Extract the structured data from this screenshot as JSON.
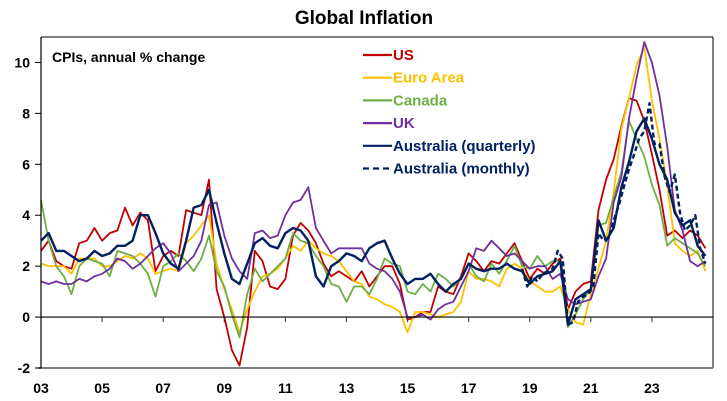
{
  "chart_data": {
    "type": "line",
    "title": "Global Inflation",
    "subtitle": "CPIs, annual % change",
    "xlabel": "",
    "ylabel": "",
    "xlim": [
      2003,
      2025
    ],
    "ylim": [
      -2,
      11
    ],
    "yticks": [
      -2,
      0,
      2,
      4,
      6,
      8,
      10
    ],
    "ytick_labels": [
      "-2",
      "0",
      "2",
      "4",
      "6",
      "8",
      "10"
    ],
    "xticks": [
      2003,
      2005,
      2007,
      2009,
      2011,
      2013,
      2015,
      2017,
      2019,
      2021,
      2023
    ],
    "xtick_labels": [
      "03",
      "05",
      "07",
      "09",
      "11",
      "13",
      "15",
      "17",
      "19",
      "21",
      "23"
    ],
    "grid": false,
    "legend_position": "top-center",
    "series": [
      {
        "name": "US",
        "color": "#C00000",
        "dash": false,
        "x": [
          2003.0,
          2003.25,
          2003.5,
          2003.75,
          2004.0,
          2004.25,
          2004.5,
          2004.75,
          2005.0,
          2005.25,
          2005.5,
          2005.75,
          2006.0,
          2006.25,
          2006.5,
          2006.75,
          2007.0,
          2007.25,
          2007.5,
          2007.75,
          2008.0,
          2008.25,
          2008.5,
          2008.75,
          2009.0,
          2009.25,
          2009.5,
          2009.75,
          2010.0,
          2010.25,
          2010.5,
          2010.75,
          2011.0,
          2011.25,
          2011.5,
          2011.75,
          2012.0,
          2012.25,
          2012.5,
          2012.75,
          2013.0,
          2013.25,
          2013.5,
          2013.75,
          2014.0,
          2014.25,
          2014.5,
          2014.75,
          2015.0,
          2015.25,
          2015.5,
          2015.75,
          2016.0,
          2016.25,
          2016.5,
          2016.75,
          2017.0,
          2017.25,
          2017.5,
          2017.75,
          2018.0,
          2018.25,
          2018.5,
          2018.75,
          2019.0,
          2019.25,
          2019.5,
          2019.75,
          2020.0,
          2020.25,
          2020.5,
          2020.75,
          2021.0,
          2021.25,
          2021.5,
          2021.75,
          2022.0,
          2022.25,
          2022.5,
          2022.75,
          2023.0,
          2023.25,
          2023.5,
          2023.75,
          2024.0,
          2024.25,
          2024.5,
          2024.75
        ],
        "values": [
          2.6,
          3.0,
          2.2,
          2.0,
          1.9,
          2.9,
          3.0,
          3.5,
          3.0,
          3.3,
          3.4,
          4.3,
          3.6,
          4.1,
          3.8,
          1.8,
          2.4,
          2.6,
          2.4,
          4.2,
          4.1,
          4.0,
          5.4,
          1.1,
          0.0,
          -1.3,
          -1.9,
          -0.4,
          2.6,
          2.2,
          1.2,
          1.1,
          1.5,
          3.2,
          3.7,
          3.4,
          2.9,
          2.1,
          1.6,
          1.8,
          1.6,
          1.4,
          1.8,
          1.2,
          1.6,
          2.0,
          2.0,
          1.3,
          -0.1,
          0.0,
          0.2,
          0.2,
          1.2,
          1.0,
          0.9,
          1.6,
          2.5,
          2.2,
          1.8,
          2.2,
          2.1,
          2.5,
          2.9,
          2.2,
          1.5,
          1.9,
          1.7,
          2.1,
          2.3,
          0.3,
          1.0,
          1.3,
          1.4,
          4.2,
          5.4,
          6.2,
          7.5,
          8.6,
          8.5,
          7.7,
          6.4,
          5.0,
          3.2,
          3.4,
          3.1,
          3.4,
          3.2,
          2.7
        ]
      },
      {
        "name": "Euro Area",
        "color": "#FFC000",
        "dash": false,
        "x": [
          2003.0,
          2003.25,
          2003.5,
          2003.75,
          2004.0,
          2004.25,
          2004.5,
          2004.75,
          2005.0,
          2005.25,
          2005.5,
          2005.75,
          2006.0,
          2006.25,
          2006.5,
          2006.75,
          2007.0,
          2007.25,
          2007.5,
          2007.75,
          2008.0,
          2008.25,
          2008.5,
          2008.75,
          2009.0,
          2009.25,
          2009.5,
          2009.75,
          2010.0,
          2010.25,
          2010.5,
          2010.75,
          2011.0,
          2011.25,
          2011.5,
          2011.75,
          2012.0,
          2012.25,
          2012.5,
          2012.75,
          2013.0,
          2013.25,
          2013.5,
          2013.75,
          2014.0,
          2014.25,
          2014.5,
          2014.75,
          2015.0,
          2015.25,
          2015.5,
          2015.75,
          2016.0,
          2016.25,
          2016.5,
          2016.75,
          2017.0,
          2017.25,
          2017.5,
          2017.75,
          2018.0,
          2018.25,
          2018.5,
          2018.75,
          2019.0,
          2019.25,
          2019.5,
          2019.75,
          2020.0,
          2020.25,
          2020.5,
          2020.75,
          2021.0,
          2021.25,
          2021.5,
          2021.75,
          2022.0,
          2022.25,
          2022.5,
          2022.75,
          2023.0,
          2023.25,
          2023.5,
          2023.75,
          2024.0,
          2024.25,
          2024.5,
          2024.75
        ],
        "values": [
          2.1,
          2.0,
          2.0,
          2.0,
          1.7,
          2.3,
          2.3,
          2.3,
          2.0,
          2.0,
          2.2,
          2.4,
          2.3,
          2.5,
          2.3,
          1.7,
          1.8,
          1.9,
          1.8,
          2.9,
          3.2,
          3.6,
          4.0,
          2.1,
          1.1,
          0.3,
          -0.6,
          0.3,
          1.0,
          1.6,
          1.7,
          1.9,
          2.3,
          2.8,
          2.6,
          3.0,
          2.7,
          2.5,
          2.4,
          2.2,
          1.8,
          1.4,
          1.3,
          0.8,
          0.7,
          0.5,
          0.4,
          0.2,
          -0.6,
          0.2,
          0.2,
          0.1,
          0.0,
          0.1,
          0.2,
          0.6,
          1.8,
          1.5,
          1.5,
          1.4,
          1.2,
          1.9,
          2.1,
          1.9,
          1.4,
          1.2,
          1.0,
          1.0,
          1.2,
          0.3,
          -0.2,
          -0.3,
          0.9,
          1.9,
          3.0,
          4.9,
          7.4,
          8.6,
          9.9,
          10.6,
          8.5,
          7.0,
          5.2,
          2.9,
          2.6,
          2.4,
          2.6,
          1.8
        ]
      },
      {
        "name": "Canada",
        "color": "#70AD47",
        "dash": false,
        "x": [
          2003.0,
          2003.25,
          2003.5,
          2003.75,
          2004.0,
          2004.25,
          2004.5,
          2004.75,
          2005.0,
          2005.25,
          2005.5,
          2005.75,
          2006.0,
          2006.25,
          2006.5,
          2006.75,
          2007.0,
          2007.25,
          2007.5,
          2007.75,
          2008.0,
          2008.25,
          2008.5,
          2008.75,
          2009.0,
          2009.25,
          2009.5,
          2009.75,
          2010.0,
          2010.25,
          2010.5,
          2010.75,
          2011.0,
          2011.25,
          2011.5,
          2011.75,
          2012.0,
          2012.25,
          2012.5,
          2012.75,
          2013.0,
          2013.25,
          2013.5,
          2013.75,
          2014.0,
          2014.25,
          2014.5,
          2014.75,
          2015.0,
          2015.25,
          2015.5,
          2015.75,
          2016.0,
          2016.25,
          2016.5,
          2016.75,
          2017.0,
          2017.25,
          2017.5,
          2017.75,
          2018.0,
          2018.25,
          2018.5,
          2018.75,
          2019.0,
          2019.25,
          2019.5,
          2019.75,
          2020.0,
          2020.25,
          2020.5,
          2020.75,
          2021.0,
          2021.25,
          2021.5,
          2021.75,
          2022.0,
          2022.25,
          2022.5,
          2022.75,
          2023.0,
          2023.25,
          2023.5,
          2023.75,
          2024.0,
          2024.25,
          2024.5,
          2024.75
        ],
        "values": [
          4.6,
          3.0,
          2.0,
          1.6,
          0.9,
          2.0,
          2.3,
          2.2,
          2.1,
          1.6,
          2.6,
          2.5,
          2.4,
          2.1,
          1.7,
          0.8,
          2.0,
          2.2,
          2.5,
          2.2,
          1.8,
          2.3,
          3.2,
          1.8,
          1.2,
          0.1,
          -0.8,
          0.9,
          1.9,
          1.4,
          1.7,
          2.0,
          2.3,
          3.3,
          3.0,
          2.9,
          2.4,
          2.0,
          1.3,
          1.2,
          0.6,
          1.2,
          1.2,
          0.9,
          1.5,
          2.3,
          2.1,
          2.0,
          1.0,
          0.9,
          1.3,
          1.0,
          1.7,
          1.5,
          1.2,
          1.5,
          2.1,
          1.6,
          1.4,
          2.1,
          1.7,
          2.2,
          2.8,
          2.0,
          1.9,
          2.4,
          2.0,
          2.2,
          2.2,
          -0.4,
          0.1,
          0.7,
          1.1,
          3.6,
          3.7,
          4.7,
          5.7,
          7.7,
          7.0,
          6.3,
          5.2,
          4.4,
          2.8,
          3.1,
          2.9,
          2.7,
          2.5,
          2.0
        ]
      },
      {
        "name": "UK",
        "color": "#7030A0",
        "dash": false,
        "x": [
          2003.0,
          2003.25,
          2003.5,
          2003.75,
          2004.0,
          2004.25,
          2004.5,
          2004.75,
          2005.0,
          2005.25,
          2005.5,
          2005.75,
          2006.0,
          2006.25,
          2006.5,
          2006.75,
          2007.0,
          2007.25,
          2007.5,
          2007.75,
          2008.0,
          2008.25,
          2008.5,
          2008.75,
          2009.0,
          2009.25,
          2009.5,
          2009.75,
          2010.0,
          2010.25,
          2010.5,
          2010.75,
          2011.0,
          2011.25,
          2011.5,
          2011.75,
          2012.0,
          2012.25,
          2012.5,
          2012.75,
          2013.0,
          2013.25,
          2013.5,
          2013.75,
          2014.0,
          2014.25,
          2014.5,
          2014.75,
          2015.0,
          2015.25,
          2015.5,
          2015.75,
          2016.0,
          2016.25,
          2016.5,
          2016.75,
          2017.0,
          2017.25,
          2017.5,
          2017.75,
          2018.0,
          2018.25,
          2018.5,
          2018.75,
          2019.0,
          2019.25,
          2019.5,
          2019.75,
          2020.0,
          2020.25,
          2020.5,
          2020.75,
          2021.0,
          2021.25,
          2021.5,
          2021.75,
          2022.0,
          2022.25,
          2022.5,
          2022.75,
          2023.0,
          2023.25,
          2023.5,
          2023.75,
          2024.0,
          2024.25,
          2024.5,
          2024.75
        ],
        "values": [
          1.4,
          1.3,
          1.4,
          1.3,
          1.3,
          1.5,
          1.4,
          1.6,
          1.7,
          1.9,
          2.3,
          2.2,
          1.9,
          2.1,
          2.4,
          2.7,
          2.9,
          2.5,
          1.8,
          2.1,
          2.4,
          3.0,
          4.4,
          4.5,
          3.2,
          2.3,
          1.8,
          1.5,
          3.3,
          3.4,
          3.1,
          3.2,
          4.0,
          4.5,
          4.6,
          5.1,
          3.5,
          3.0,
          2.5,
          2.7,
          2.7,
          2.7,
          2.7,
          2.1,
          1.9,
          1.8,
          1.5,
          1.0,
          0.0,
          0.0,
          0.1,
          -0.1,
          0.3,
          0.5,
          0.6,
          1.2,
          1.8,
          2.7,
          2.6,
          3.0,
          2.7,
          2.4,
          2.5,
          2.2,
          1.9,
          2.0,
          2.0,
          1.5,
          1.7,
          0.7,
          0.5,
          0.6,
          0.7,
          1.6,
          2.3,
          4.5,
          5.5,
          7.8,
          9.4,
          10.8,
          10.0,
          8.7,
          6.7,
          4.2,
          3.4,
          2.2,
          2.0,
          2.2
        ]
      },
      {
        "name": "Australia (quarterly)",
        "color": "#002060",
        "dash": false,
        "x": [
          2003.0,
          2003.25,
          2003.5,
          2003.75,
          2004.0,
          2004.25,
          2004.5,
          2004.75,
          2005.0,
          2005.25,
          2005.5,
          2005.75,
          2006.0,
          2006.25,
          2006.5,
          2006.75,
          2007.0,
          2007.25,
          2007.5,
          2007.75,
          2008.0,
          2008.25,
          2008.5,
          2008.75,
          2009.0,
          2009.25,
          2009.5,
          2009.75,
          2010.0,
          2010.25,
          2010.5,
          2010.75,
          2011.0,
          2011.25,
          2011.5,
          2011.75,
          2012.0,
          2012.25,
          2012.5,
          2012.75,
          2013.0,
          2013.25,
          2013.5,
          2013.75,
          2014.0,
          2014.25,
          2014.5,
          2014.75,
          2015.0,
          2015.25,
          2015.5,
          2015.75,
          2016.0,
          2016.25,
          2016.5,
          2016.75,
          2017.0,
          2017.25,
          2017.5,
          2017.75,
          2018.0,
          2018.25,
          2018.5,
          2018.75,
          2019.0,
          2019.25,
          2019.5,
          2019.75,
          2020.0,
          2020.25,
          2020.5,
          2020.75,
          2021.0,
          2021.25,
          2021.5,
          2021.75,
          2022.0,
          2022.25,
          2022.5,
          2022.75,
          2023.0,
          2023.25,
          2023.5,
          2023.75,
          2024.0,
          2024.25,
          2024.5,
          2024.75
        ],
        "values": [
          3.0,
          3.3,
          2.6,
          2.6,
          2.4,
          2.2,
          2.3,
          2.6,
          2.4,
          2.5,
          2.8,
          2.8,
          3.0,
          4.0,
          4.0,
          3.3,
          2.5,
          2.1,
          1.9,
          3.0,
          4.3,
          4.4,
          5.0,
          3.7,
          2.5,
          1.5,
          1.3,
          2.1,
          2.9,
          3.1,
          2.8,
          2.7,
          3.3,
          3.5,
          3.4,
          3.0,
          1.6,
          1.2,
          2.0,
          2.2,
          2.5,
          2.4,
          2.2,
          2.7,
          2.9,
          3.0,
          2.3,
          1.7,
          1.3,
          1.5,
          1.5,
          1.7,
          1.3,
          1.0,
          1.3,
          1.5,
          2.1,
          1.9,
          1.8,
          1.9,
          1.9,
          2.1,
          1.9,
          1.8,
          1.3,
          1.6,
          1.7,
          1.8,
          2.2,
          -0.3,
          0.7,
          0.9,
          1.1,
          3.8,
          3.0,
          3.5,
          5.1,
          6.1,
          7.3,
          7.8,
          7.0,
          6.0,
          5.4,
          4.1,
          3.6,
          3.8,
          2.8,
          2.4
        ]
      },
      {
        "name": "Australia (monthly)",
        "color": "#002060",
        "dash": true,
        "x": [
          2018.75,
          2018.92,
          2019.08,
          2019.25,
          2019.42,
          2019.58,
          2019.75,
          2019.92,
          2020.08,
          2020.25,
          2020.42,
          2020.58,
          2020.75,
          2020.92,
          2021.08,
          2021.25,
          2021.42,
          2021.58,
          2021.75,
          2021.92,
          2022.08,
          2022.25,
          2022.42,
          2022.58,
          2022.75,
          2022.92,
          2023.08,
          2023.25,
          2023.42,
          2023.58,
          2023.75,
          2023.92,
          2024.08,
          2024.25,
          2024.42,
          2024.58,
          2024.75
        ],
        "values": [
          1.9,
          1.2,
          1.6,
          1.4,
          1.7,
          1.8,
          1.9,
          2.6,
          2.3,
          -0.3,
          -0.2,
          0.6,
          0.8,
          0.9,
          1.2,
          3.3,
          3.0,
          3.1,
          3.8,
          4.4,
          5.1,
          5.8,
          6.4,
          7.0,
          7.3,
          8.4,
          6.8,
          6.8,
          5.5,
          4.9,
          5.6,
          4.1,
          3.4,
          3.6,
          4.0,
          2.7,
          2.1
        ]
      }
    ]
  }
}
